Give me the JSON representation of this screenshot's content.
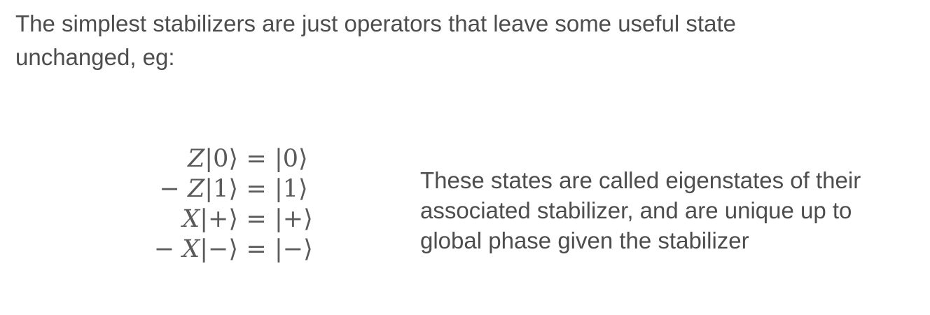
{
  "intro_text": "The simplest stabilizers are just operators that leave some useful state unchanged, eg:",
  "equations": [
    {
      "sign": "",
      "operator": "Z",
      "ket": "|0⟩",
      "relation": "=",
      "result": "|0⟩"
    },
    {
      "sign": "− ",
      "operator": "Z",
      "ket": "|1⟩",
      "relation": "=",
      "result": "|1⟩"
    },
    {
      "sign": "",
      "operator": "X",
      "ket": "|+⟩",
      "relation": "=",
      "result": "|+⟩"
    },
    {
      "sign": "− ",
      "operator": "X",
      "ket": "|−⟩",
      "relation": "=",
      "result": "|−⟩"
    }
  ],
  "side_note": "These states are called eigenstates of their associated stabilizer, and are unique up to global phase given the stabilizer"
}
